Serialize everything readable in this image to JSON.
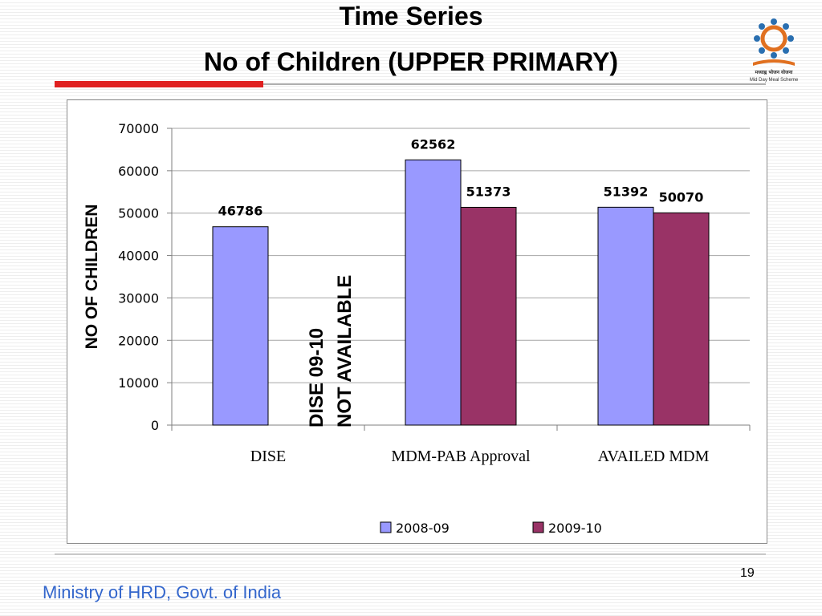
{
  "slide": {
    "title_line1": "Time Series",
    "title_line2": "No of Children (UPPER PRIMARY)",
    "page_number": "19",
    "footer": "Ministry of HRD, Govt. of India",
    "logo_text": "मध्याह्न भोजन योजना",
    "logo_subtext": "Mid Day Meal Scheme"
  },
  "chart_data": {
    "type": "bar",
    "categories": [
      "DISE",
      "MDM-PAB Approval",
      "AVAILED MDM"
    ],
    "series": [
      {
        "name": "2008-09",
        "values": [
          46786,
          62562,
          51392
        ],
        "color": "#9999ff"
      },
      {
        "name": "2009-10",
        "values": [
          null,
          51373,
          50070
        ],
        "color": "#993366"
      }
    ],
    "data_labels": [
      [
        "46786",
        "62562",
        "51392"
      ],
      [
        "",
        "51373",
        "50070"
      ]
    ],
    "title": "",
    "xlabel": "",
    "ylabel": "NO OF CHILDREN",
    "ylim": [
      0,
      70000
    ],
    "yticks": [
      "0",
      "10000",
      "20000",
      "30000",
      "40000",
      "50000",
      "60000",
      "70000"
    ],
    "grid": true,
    "legend_position": "bottom",
    "annotation_line1": "DISE 09-10",
    "annotation_line2": "NOT AVAILABLE"
  }
}
